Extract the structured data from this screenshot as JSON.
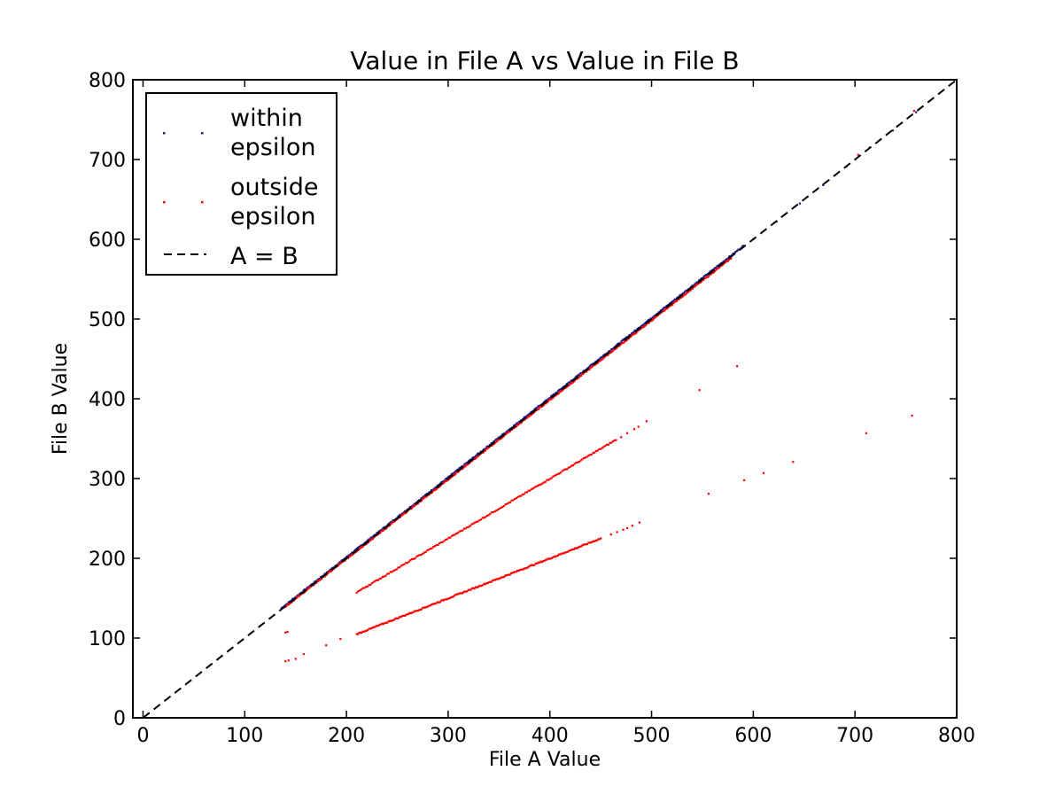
{
  "chart_data": {
    "type": "scatter",
    "title": "Value in File A vs Value in File B",
    "xlabel": "File A Value",
    "ylabel": "File B Value",
    "xlim": [
      -10,
      800
    ],
    "ylim": [
      0,
      800
    ],
    "xticks": [
      0,
      100,
      200,
      300,
      400,
      500,
      600,
      700,
      800
    ],
    "yticks": [
      0,
      100,
      200,
      300,
      400,
      500,
      600,
      700,
      800
    ],
    "xtick_labels": [
      "0",
      "100",
      "200",
      "300",
      "400",
      "500",
      "600",
      "700",
      "800"
    ],
    "ytick_labels": [
      "0",
      "100",
      "200",
      "300",
      "400",
      "500",
      "600",
      "700",
      "800"
    ],
    "grid": false,
    "legend_position": "upper-left",
    "colors": {
      "within": "#1a1a8c",
      "outside": "#ff0000",
      "reference": "#000000"
    },
    "series": [
      {
        "name": "within\nepsilon",
        "legend_lines": [
          "within",
          "epsilon"
        ],
        "color": "#1a1a8c",
        "marker": "pixel",
        "segments": [
          {
            "x0": 136,
            "x1": 590,
            "slope": 1.0,
            "offset": 1.5,
            "count": 460
          },
          {
            "x0": 600,
            "x1": 760,
            "slope": 1.0,
            "offset": 0,
            "count": 8
          }
        ]
      },
      {
        "name": "outside\nepsilon",
        "legend_lines": [
          "outside",
          "epsilon"
        ],
        "color": "#ff0000",
        "marker": "pixel",
        "segments": [
          {
            "x0": 140,
            "x1": 578,
            "slope": 0.997,
            "offset": 0,
            "count": 420
          },
          {
            "x0": 210,
            "x1": 465,
            "slope": 0.75,
            "offset": 0,
            "count": 170
          },
          {
            "x0": 210,
            "x1": 450,
            "slope": 0.5,
            "offset": 0,
            "count": 200
          }
        ],
        "points": [
          [
            470,
            352
          ],
          [
            476,
            357
          ],
          [
            483,
            362
          ],
          [
            487,
            365
          ],
          [
            495,
            372
          ],
          [
            460,
            230
          ],
          [
            466,
            233
          ],
          [
            472,
            236
          ],
          [
            476,
            238
          ],
          [
            481,
            241
          ],
          [
            488,
            245
          ],
          [
            140,
            107
          ],
          [
            142,
            108
          ],
          [
            140,
            71
          ],
          [
            143,
            72
          ],
          [
            150,
            74
          ],
          [
            158,
            80
          ],
          [
            180,
            91
          ],
          [
            194,
            99
          ],
          [
            547,
            411
          ],
          [
            584,
            441
          ],
          [
            556,
            281
          ],
          [
            591,
            298
          ],
          [
            610,
            307
          ],
          [
            639,
            321
          ],
          [
            711,
            357
          ],
          [
            756,
            379
          ],
          [
            703,
            706
          ],
          [
            758,
            761
          ]
        ]
      },
      {
        "name": "A = B",
        "legend_lines": [
          "A = B"
        ],
        "color": "#000000",
        "style": "dashed",
        "x": [
          -10,
          800
        ],
        "y": [
          -10,
          800
        ]
      }
    ]
  }
}
